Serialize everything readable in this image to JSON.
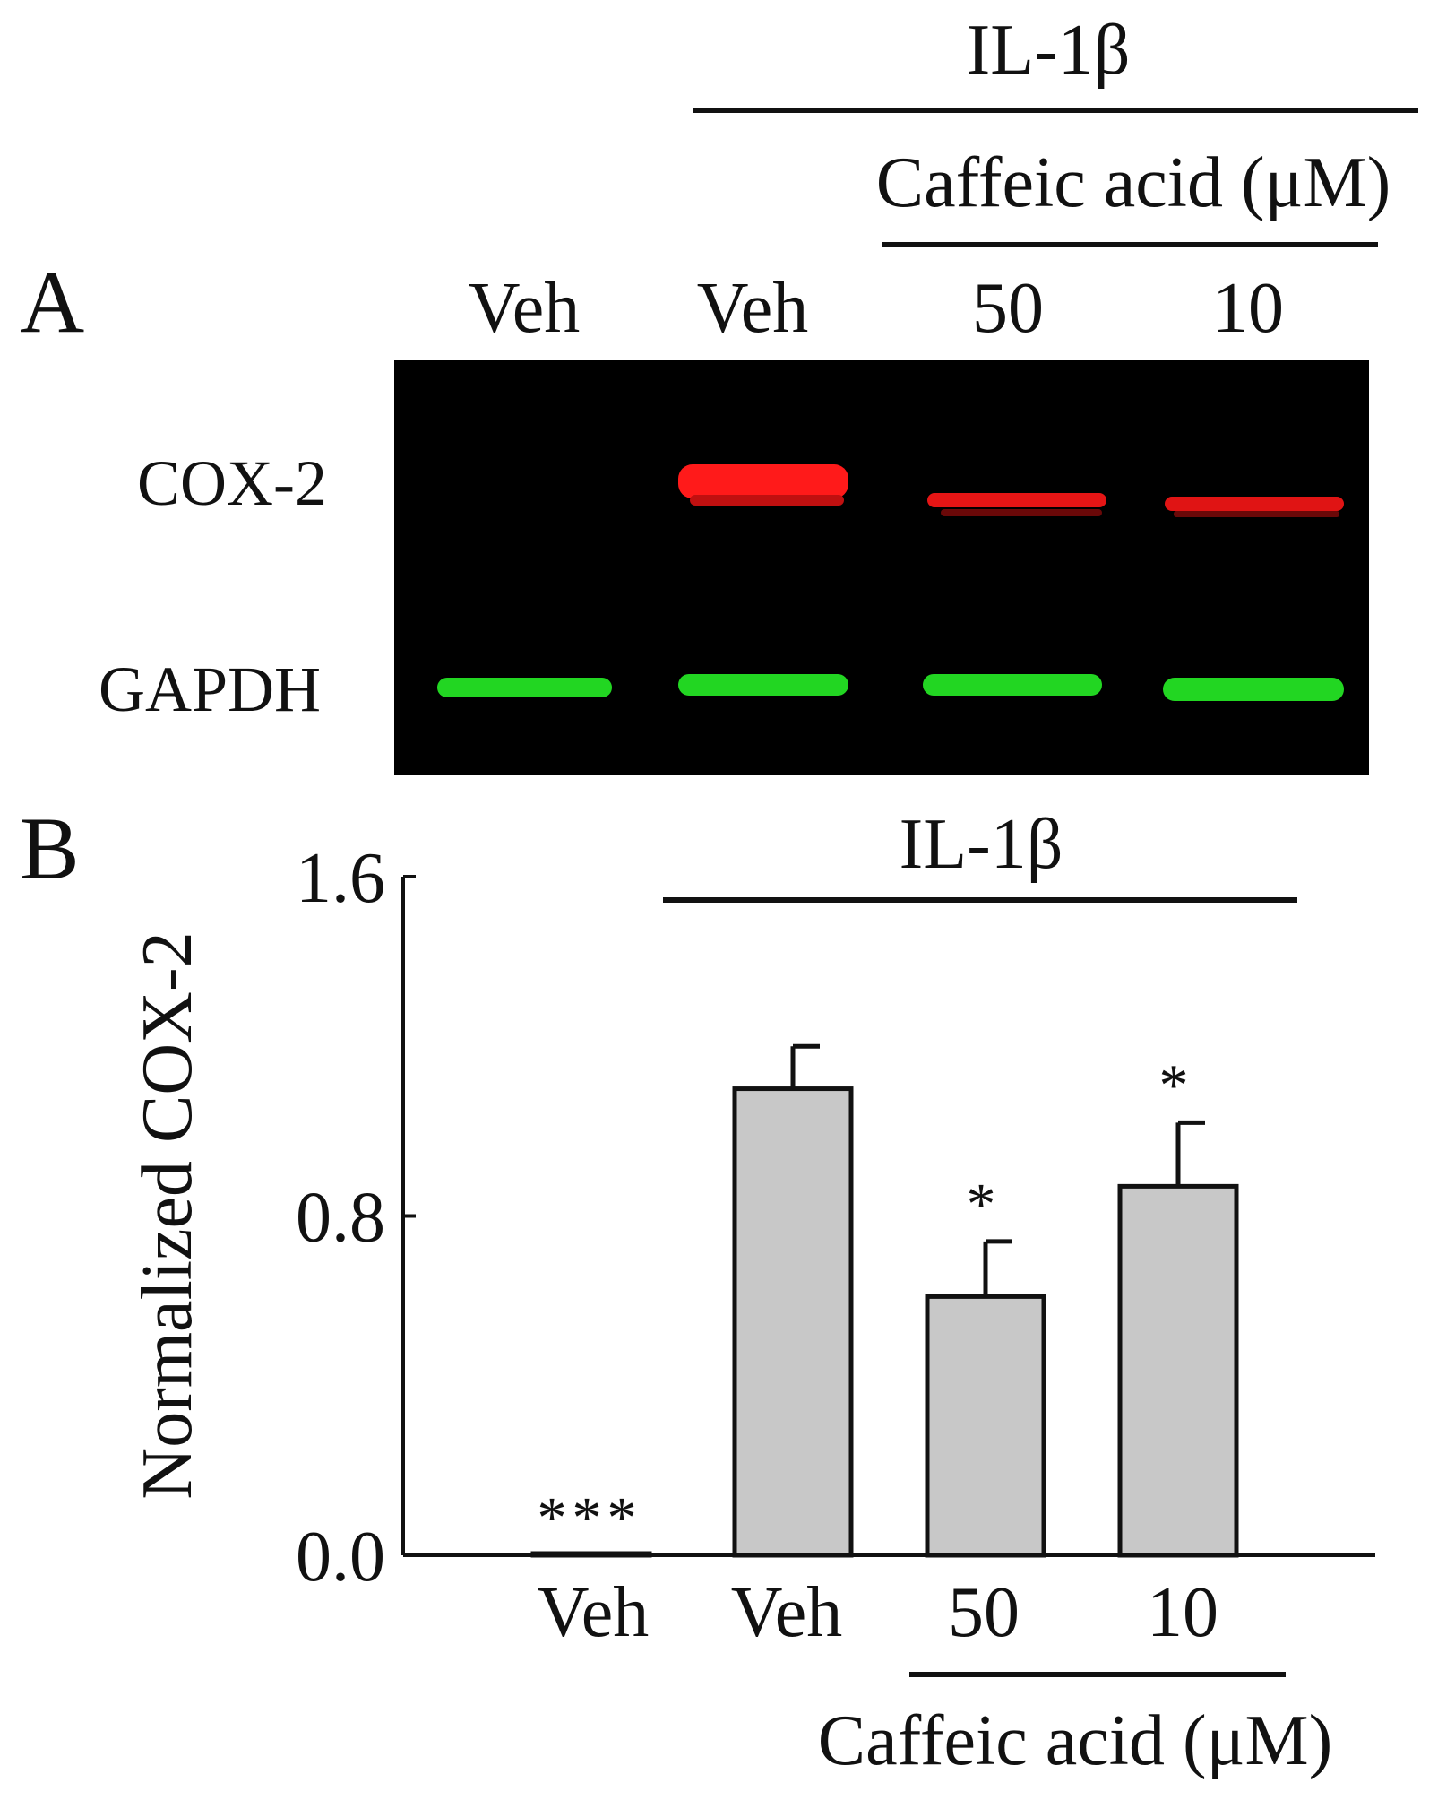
{
  "panel_a": {
    "label": "A",
    "treatment_label": "IL-1β",
    "drug_label": "Caffeic acid (μM)",
    "lanes": [
      "Veh",
      "Veh",
      "50",
      "10"
    ],
    "rows": [
      "COX-2",
      "GAPDH"
    ],
    "colors": {
      "cox2": "#ff1a1a",
      "gapdh": "#22d622",
      "blot_bg": "#000000"
    }
  },
  "chart_data": {
    "type": "bar",
    "panel_label": "B",
    "treatment_label": "IL-1β",
    "drug_label": "Caffeic acid (μM)",
    "categories": [
      "Veh",
      "Veh",
      "50",
      "10"
    ],
    "values": [
      0.0,
      1.1,
      0.61,
      0.87
    ],
    "errors": [
      0.0,
      0.1,
      0.13,
      0.15
    ],
    "significance": [
      "***",
      "",
      "*",
      "*"
    ],
    "ylabel": "Normalized COX-2",
    "ylim": [
      0,
      1.6
    ],
    "yticks": [
      "0.0",
      "0.8",
      "1.6"
    ],
    "bar_color": "#c8c8c8"
  }
}
